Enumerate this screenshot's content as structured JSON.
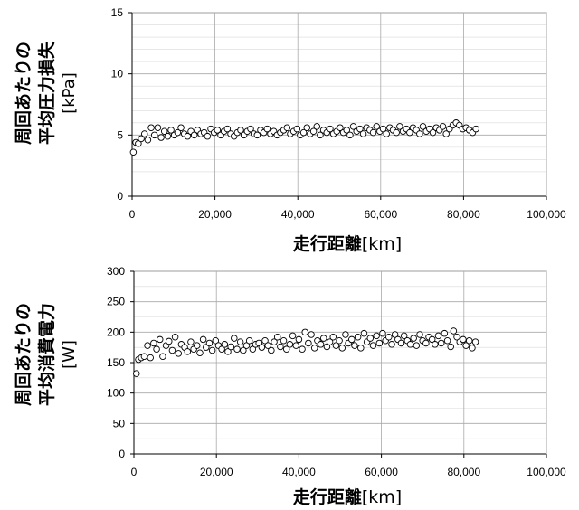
{
  "chart_data": [
    {
      "type": "scatter",
      "xlabel": "走行距離",
      "xlabel_unit": "[km]",
      "ylabel_line1": "周回あたりの",
      "ylabel_line2": "平均圧力損失",
      "ylabel_unit": "[kPa]",
      "xlim": [
        0,
        100000
      ],
      "ylim": [
        0,
        15
      ],
      "x_ticks": [
        "0",
        "20,000",
        "40,000",
        "60,000",
        "80,000",
        "100,000"
      ],
      "y_ticks": [
        "0",
        "5",
        "10",
        "15"
      ],
      "x_tick_values": [
        0,
        20000,
        40000,
        60000,
        80000,
        100000
      ],
      "y_tick_values": [
        0,
        5,
        10,
        15
      ],
      "grid": true,
      "points": {
        "x": [
          300,
          900,
          1500,
          2200,
          3000,
          3800,
          4600,
          5400,
          6200,
          7000,
          7800,
          8600,
          9400,
          10200,
          11000,
          11800,
          12600,
          13400,
          14200,
          15000,
          15800,
          16600,
          17400,
          18200,
          19000,
          19800,
          20600,
          21400,
          22200,
          23000,
          23800,
          24600,
          25400,
          26200,
          27000,
          27800,
          28600,
          29400,
          30200,
          31000,
          31800,
          32600,
          33400,
          34200,
          35000,
          35800,
          36600,
          37400,
          38200,
          39000,
          39800,
          40600,
          41400,
          42200,
          43000,
          43800,
          44600,
          45400,
          46200,
          47000,
          47800,
          48600,
          49400,
          50200,
          51000,
          51800,
          52600,
          53400,
          54200,
          55000,
          55800,
          56600,
          57400,
          58200,
          59000,
          59800,
          60600,
          61400,
          62200,
          63000,
          63800,
          64600,
          65400,
          66200,
          67000,
          67800,
          68600,
          69400,
          70200,
          71000,
          71800,
          72600,
          73400,
          74200,
          75000,
          75800,
          76600,
          77400,
          78200,
          79000,
          79800,
          80600,
          81400,
          82200,
          83000
        ],
        "y": [
          3.6,
          4.4,
          4.3,
          4.7,
          5.1,
          4.6,
          5.6,
          5.0,
          5.6,
          4.8,
          5.3,
          4.9,
          5.4,
          5.0,
          5.2,
          5.6,
          5.1,
          4.9,
          5.3,
          5.0,
          5.4,
          5.1,
          5.2,
          4.9,
          5.5,
          5.2,
          5.4,
          5.0,
          5.3,
          5.5,
          5.1,
          4.9,
          5.2,
          5.4,
          5.0,
          5.3,
          5.5,
          5.1,
          5.0,
          5.4,
          5.2,
          5.5,
          5.1,
          5.3,
          5.0,
          5.2,
          5.4,
          5.6,
          5.1,
          5.3,
          5.5,
          5.0,
          5.2,
          5.6,
          5.1,
          5.3,
          5.7,
          5.0,
          5.4,
          5.2,
          5.5,
          5.1,
          5.3,
          5.6,
          5.2,
          5.4,
          5.0,
          5.7,
          5.3,
          5.5,
          5.1,
          5.6,
          5.4,
          5.2,
          5.7,
          5.3,
          5.5,
          5.1,
          5.6,
          5.4,
          5.2,
          5.7,
          5.3,
          5.5,
          5.2,
          5.6,
          5.4,
          5.1,
          5.7,
          5.3,
          5.5,
          5.2,
          5.6,
          5.4,
          5.7,
          5.1,
          5.5,
          5.8,
          6.0,
          5.8,
          5.5,
          5.6,
          5.4,
          5.2,
          5.5
        ]
      }
    },
    {
      "type": "scatter",
      "xlabel": "走行距離",
      "xlabel_unit": "[km]",
      "ylabel_line1": "周回あたりの",
      "ylabel_line2": "平均消費電力",
      "ylabel_unit": "[W]",
      "xlim": [
        0,
        100000
      ],
      "ylim": [
        0,
        300
      ],
      "x_ticks": [
        "0",
        "20,000",
        "40,000",
        "60,000",
        "80,000",
        "100,000"
      ],
      "y_ticks": [
        "0",
        "50",
        "100",
        "150",
        "200",
        "250",
        "300"
      ],
      "x_tick_values": [
        0,
        20000,
        40000,
        60000,
        80000,
        100000
      ],
      "y_tick_values": [
        0,
        50,
        100,
        150,
        200,
        250,
        300
      ],
      "grid": true,
      "points": {
        "x": [
          600,
          1100,
          1800,
          2500,
          3300,
          4000,
          4800,
          5500,
          6300,
          7000,
          7800,
          8500,
          9300,
          10000,
          10800,
          11500,
          12300,
          13000,
          13800,
          14500,
          15300,
          16000,
          16800,
          17500,
          18300,
          19000,
          19800,
          20500,
          21300,
          22000,
          22800,
          23500,
          24300,
          25000,
          25800,
          26500,
          27300,
          28000,
          28800,
          29500,
          30300,
          31000,
          31800,
          32500,
          33300,
          34000,
          34800,
          35500,
          36300,
          37000,
          37800,
          38500,
          39300,
          40000,
          40800,
          41500,
          42300,
          43000,
          43800,
          44500,
          45300,
          46000,
          46800,
          47500,
          48300,
          49000,
          49800,
          50500,
          51300,
          52000,
          52800,
          53500,
          54300,
          55000,
          55800,
          56500,
          57300,
          58000,
          58800,
          59500,
          60300,
          61000,
          61800,
          62500,
          63300,
          64000,
          64800,
          65500,
          66300,
          67000,
          67800,
          68500,
          69300,
          70000,
          70800,
          71500,
          72300,
          73000,
          73800,
          74500,
          75300,
          76000,
          76800,
          77500,
          78300,
          79000,
          79800,
          80500,
          81300,
          82000,
          82800
        ],
        "y": [
          132,
          155,
          158,
          160,
          178,
          158,
          182,
          172,
          188,
          160,
          178,
          185,
          170,
          192,
          165,
          180,
          175,
          168,
          184,
          172,
          178,
          166,
          188,
          175,
          182,
          170,
          186,
          178,
          172,
          180,
          168,
          176,
          190,
          172,
          184,
          170,
          178,
          186,
          172,
          180,
          182,
          175,
          186,
          178,
          170,
          184,
          192,
          176,
          186,
          172,
          180,
          194,
          178,
          188,
          172,
          200,
          182,
          196,
          174,
          186,
          180,
          190,
          176,
          184,
          192,
          178,
          186,
          174,
          196,
          182,
          188,
          178,
          192,
          174,
          198,
          184,
          190,
          178,
          194,
          182,
          198,
          186,
          192,
          180,
          196,
          188,
          182,
          194,
          186,
          180,
          190,
          178,
          196,
          186,
          182,
          192,
          188,
          180,
          194,
          182,
          198,
          186,
          176,
          202,
          192,
          184,
          188,
          178,
          186,
          174,
          184
        ]
      }
    }
  ]
}
